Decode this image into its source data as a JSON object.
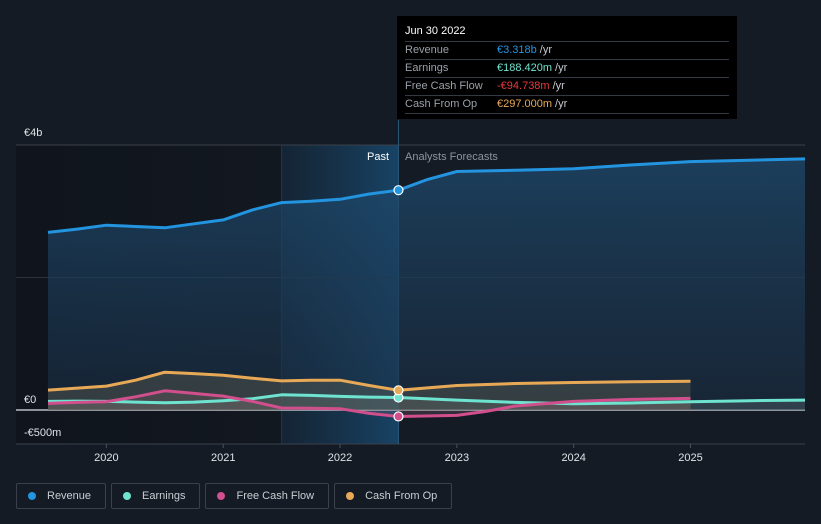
{
  "chart_data": {
    "type": "line",
    "title": "",
    "xlabel": "",
    "ylabel": "",
    "x_ticks": [
      "2020",
      "2021",
      "2022",
      "2023",
      "2024",
      "2025"
    ],
    "x_range": [
      2019.5,
      2025.98
    ],
    "y_ticks": [
      {
        "value": 4000,
        "label": "€4b"
      },
      {
        "value": 0,
        "label": "€0"
      },
      {
        "value": -500,
        "label": "-€500m"
      }
    ],
    "ylim": [
      -500,
      4000
    ],
    "units": "€ millions",
    "divider": {
      "x": 2022.5,
      "past_label": "Past",
      "forecast_label": "Analysts Forecasts"
    },
    "highlight_band": [
      2021.5,
      2022.5
    ],
    "grid": true,
    "legend_position": "bottom-left",
    "series": [
      {
        "name": "Revenue",
        "color": "#2394df",
        "points": [
          [
            2019.5,
            2680
          ],
          [
            2019.75,
            2730
          ],
          [
            2020.0,
            2790
          ],
          [
            2020.25,
            2770
          ],
          [
            2020.5,
            2750
          ],
          [
            2020.75,
            2810
          ],
          [
            2021.0,
            2870
          ],
          [
            2021.25,
            3020
          ],
          [
            2021.5,
            3130
          ],
          [
            2021.75,
            3150
          ],
          [
            2022.0,
            3180
          ],
          [
            2022.25,
            3260
          ],
          [
            2022.5,
            3318
          ],
          [
            2022.75,
            3480
          ],
          [
            2023.0,
            3600
          ],
          [
            2023.5,
            3620
          ],
          [
            2024.0,
            3640
          ],
          [
            2024.5,
            3700
          ],
          [
            2025.0,
            3750
          ],
          [
            2025.5,
            3770
          ],
          [
            2025.98,
            3790
          ]
        ]
      },
      {
        "name": "Earnings",
        "color": "#6ee3cf",
        "points": [
          [
            2019.5,
            130
          ],
          [
            2019.75,
            135
          ],
          [
            2020.0,
            130
          ],
          [
            2020.25,
            120
          ],
          [
            2020.5,
            110
          ],
          [
            2020.75,
            120
          ],
          [
            2021.0,
            140
          ],
          [
            2021.25,
            170
          ],
          [
            2021.5,
            230
          ],
          [
            2021.75,
            220
          ],
          [
            2022.0,
            205
          ],
          [
            2022.25,
            195
          ],
          [
            2022.5,
            188
          ],
          [
            2023.0,
            150
          ],
          [
            2023.5,
            115
          ],
          [
            2024.0,
            95
          ],
          [
            2024.5,
            105
          ],
          [
            2025.0,
            125
          ],
          [
            2025.5,
            140
          ],
          [
            2025.98,
            150
          ]
        ]
      },
      {
        "name": "Free Cash Flow",
        "color": "#d04f8c",
        "points": [
          [
            2019.5,
            100
          ],
          [
            2019.75,
            115
          ],
          [
            2020.0,
            125
          ],
          [
            2020.25,
            200
          ],
          [
            2020.5,
            290
          ],
          [
            2020.75,
            250
          ],
          [
            2021.0,
            210
          ],
          [
            2021.25,
            130
          ],
          [
            2021.5,
            30
          ],
          [
            2021.75,
            25
          ],
          [
            2022.0,
            20
          ],
          [
            2022.25,
            -50
          ],
          [
            2022.5,
            -95
          ],
          [
            2023.0,
            -80
          ],
          [
            2023.25,
            -20
          ],
          [
            2023.5,
            60
          ],
          [
            2024.0,
            130
          ],
          [
            2024.5,
            160
          ],
          [
            2025.0,
            175
          ]
        ]
      },
      {
        "name": "Cash From Op",
        "color": "#e8a957",
        "points": [
          [
            2019.5,
            300
          ],
          [
            2019.75,
            330
          ],
          [
            2020.0,
            360
          ],
          [
            2020.25,
            450
          ],
          [
            2020.5,
            570
          ],
          [
            2020.75,
            550
          ],
          [
            2021.0,
            525
          ],
          [
            2021.25,
            480
          ],
          [
            2021.5,
            440
          ],
          [
            2021.75,
            450
          ],
          [
            2022.0,
            450
          ],
          [
            2022.25,
            370
          ],
          [
            2022.5,
            297
          ],
          [
            2023.0,
            370
          ],
          [
            2023.5,
            400
          ],
          [
            2024.0,
            415
          ],
          [
            2024.5,
            425
          ],
          [
            2025.0,
            435
          ]
        ]
      }
    ]
  },
  "tooltip": {
    "date": "Jun 30 2022",
    "rows": [
      {
        "label": "Revenue",
        "value": "€3.318b",
        "unit": "/yr",
        "color": "#2394df"
      },
      {
        "label": "Earnings",
        "value": "€188.420m",
        "unit": "/yr",
        "color": "#6ee3cf"
      },
      {
        "label": "Free Cash Flow",
        "value": "-€94.738m",
        "unit": "/yr",
        "color": "#e8393c"
      },
      {
        "label": "Cash From Op",
        "value": "€297.000m",
        "unit": "/yr",
        "color": "#e8a957"
      }
    ]
  },
  "legend": [
    {
      "label": "Revenue",
      "color": "#2394df"
    },
    {
      "label": "Earnings",
      "color": "#6ee3cf"
    },
    {
      "label": "Free Cash Flow",
      "color": "#d04f8c"
    },
    {
      "label": "Cash From Op",
      "color": "#e8a957"
    }
  ]
}
